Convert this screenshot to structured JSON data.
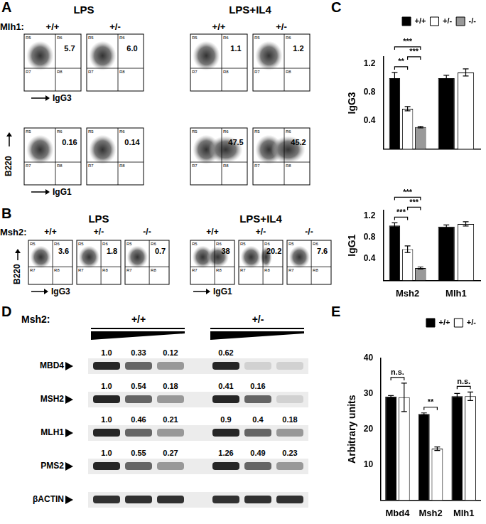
{
  "letters": [
    "A",
    "B",
    "C",
    "D",
    "E"
  ],
  "panel_A": {
    "gene_label": "Mlh1:",
    "y_label": "B220",
    "quadrant_labels": [
      "R5",
      "R6",
      "R7",
      "R8"
    ],
    "conditions": [
      {
        "title": "LPS",
        "genotypes": [
          "+/+",
          "+/-"
        ]
      },
      {
        "title": "LPS+IL4",
        "genotypes": [
          "+/+",
          "+/-"
        ]
      }
    ],
    "rows": [
      {
        "x_label": "IgG3",
        "percent": [
          [
            "5.7",
            "6.0"
          ],
          [
            "1.1",
            "1.2"
          ]
        ]
      },
      {
        "x_label": "IgG1",
        "percent": [
          [
            "0.16",
            "0.14"
          ],
          [
            "47.5",
            "45.2"
          ]
        ]
      }
    ]
  },
  "panel_B": {
    "gene_label": "Msh2:",
    "y_label": "B220",
    "quadrant_labels": [
      "R5",
      "R6",
      "R7",
      "R8"
    ],
    "panels": [
      {
        "title": "LPS",
        "genotypes": [
          "+/+",
          "+/-",
          "-/-"
        ],
        "x_label": "IgG3",
        "percent": [
          "3.6",
          "1.8",
          "0.7"
        ]
      },
      {
        "title": "LPS+IL4",
        "genotypes": [
          "+/+",
          "+/-",
          "-/-"
        ],
        "x_label": "IgG1",
        "percent": [
          "38",
          "20.2",
          "7.6"
        ]
      }
    ]
  },
  "panel_D": {
    "gene_label": "Msh2:",
    "genotypes": [
      "+/+",
      "+/-"
    ],
    "rows": [
      {
        "label": "MBD4",
        "values": [
          [
            "1.0",
            "0.33",
            "0.12"
          ],
          [
            "0.62",
            null,
            null
          ]
        ]
      },
      {
        "label": "MSH2",
        "values": [
          [
            "1.0",
            "0.54",
            "0.18"
          ],
          [
            "0.41",
            "0.16",
            null
          ]
        ]
      },
      {
        "label": "MLH1",
        "values": [
          [
            "1.0",
            "0.46",
            "0.21"
          ],
          [
            "0.9",
            "0.4",
            "0.18"
          ]
        ]
      },
      {
        "label": "PMS2",
        "values": [
          [
            "1.0",
            "0.55",
            "0.27"
          ],
          [
            "1.26",
            "0.49",
            "0.23"
          ]
        ]
      },
      {
        "label": "βACTIN",
        "values": [
          [
            null,
            null,
            null
          ],
          [
            null,
            null,
            null
          ]
        ]
      }
    ]
  },
  "chart_data": [
    {
      "type": "bar",
      "y_label": "IgG3",
      "categories": [
        "Msh2",
        "Mlh1"
      ],
      "tick_labels": "y",
      "grid": false,
      "legend": "top-right",
      "ylim": [
        0,
        1.3
      ],
      "yticks": [
        0.4,
        0.8,
        1.2
      ],
      "series": [
        {
          "name": "+/+",
          "color": "#000000",
          "values": [
            1.0,
            1.0
          ],
          "errors": [
            0.08,
            0.04
          ]
        },
        {
          "name": "+/-",
          "color": "#ffffff",
          "values": [
            0.57,
            1.08
          ],
          "errors": [
            0.03,
            0.05
          ]
        },
        {
          "name": "-/-",
          "color": "#999999",
          "values": [
            0.31,
            null
          ],
          "errors": [
            0.01,
            null
          ]
        }
      ],
      "significance": [
        {
          "category": "Msh2",
          "from": "+/+",
          "to": "+/-",
          "label": "**"
        },
        {
          "category": "Msh2",
          "from": "+/+",
          "to": "-/-",
          "label": "***"
        },
        {
          "category": "Msh2",
          "from": "+/-",
          "to": "-/-",
          "label": "***"
        }
      ]
    },
    {
      "type": "bar",
      "y_label": "IgG1",
      "categories": [
        "Msh2",
        "Mlh1"
      ],
      "grid": false,
      "ylim": [
        0,
        1.3
      ],
      "yticks": [
        0.4,
        0.8,
        1.2
      ],
      "series": [
        {
          "name": "+/+",
          "color": "#000000",
          "values": [
            1.02,
            1.0
          ],
          "errors": [
            0.05,
            0.03
          ]
        },
        {
          "name": "+/-",
          "color": "#ffffff",
          "values": [
            0.58,
            1.05
          ],
          "errors": [
            0.06,
            0.04
          ]
        },
        {
          "name": "-/-",
          "color": "#999999",
          "values": [
            0.23,
            null
          ],
          "errors": [
            0.02,
            null
          ]
        }
      ],
      "significance": [
        {
          "category": "Msh2",
          "from": "+/+",
          "to": "+/-",
          "label": "***"
        },
        {
          "category": "Msh2",
          "from": "+/+",
          "to": "-/-",
          "label": "***"
        },
        {
          "category": "Msh2",
          "from": "+/-",
          "to": "-/-",
          "label": "***"
        }
      ]
    },
    {
      "type": "bar",
      "y_label": "Arbitrary units",
      "categories": [
        "Mbd4",
        "Msh2",
        "Mlh1"
      ],
      "grid": false,
      "legend": "top-right",
      "ylim": [
        0,
        40
      ],
      "yticks": [
        10,
        20,
        30,
        40
      ],
      "series": [
        {
          "name": "+/+",
          "color": "#000000",
          "values": [
            29.2,
            24.3,
            29.3
          ],
          "errors": [
            0.3,
            0.3,
            0.8
          ]
        },
        {
          "name": "+/-",
          "color": "#ffffff",
          "values": [
            29,
            14.5,
            29.3
          ],
          "errors": [
            4,
            0.5,
            1.2
          ]
        }
      ],
      "significance": [
        {
          "category": "Mbd4",
          "from": "+/+",
          "to": "+/-",
          "label": "n.s."
        },
        {
          "category": "Msh2",
          "from": "+/+",
          "to": "+/-",
          "label": "**"
        },
        {
          "category": "Mlh1",
          "from": "+/+",
          "to": "+/-",
          "label": "n.s."
        }
      ]
    }
  ]
}
